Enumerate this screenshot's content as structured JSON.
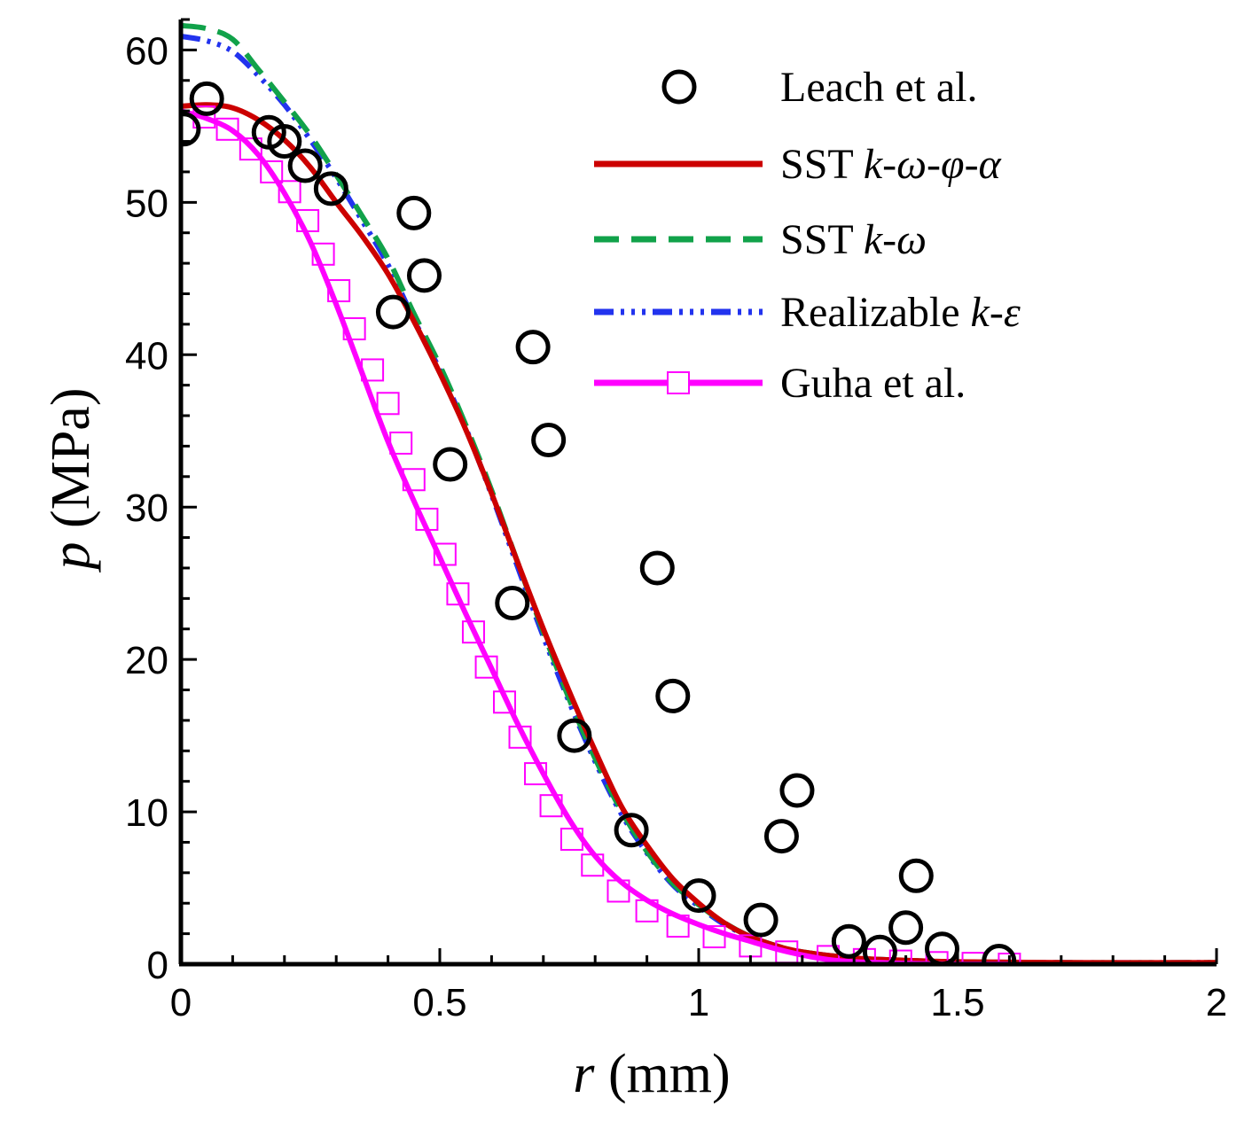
{
  "chart_data": {
    "type": "line",
    "title": "",
    "xlabel": {
      "symbol": "r",
      "unit": "(mm)"
    },
    "ylabel": {
      "symbol": "p",
      "unit": "(MPa)"
    },
    "xlim": [
      0,
      2
    ],
    "ylim": [
      0,
      62
    ],
    "x_ticks": [
      0,
      0.5,
      1,
      1.5,
      2
    ],
    "x_tick_labels": [
      "0",
      "0.5",
      "1",
      "1.5",
      "2"
    ],
    "y_ticks": [
      0,
      10,
      20,
      30,
      40,
      50,
      60
    ],
    "y_tick_labels": [
      "0",
      "10",
      "20",
      "30",
      "40",
      "50",
      "60"
    ],
    "legend_position": "top-right",
    "series": [
      {
        "name": "Leach et al.",
        "legend_parts": [
          {
            "t": "Leach et al.",
            "i": false
          }
        ],
        "kind": "markers",
        "marker": "circle",
        "color": "#000000",
        "points": [
          [
            0.005,
            54.8
          ],
          [
            0.05,
            56.8
          ],
          [
            0.17,
            54.6
          ],
          [
            0.2,
            54.0
          ],
          [
            0.24,
            52.4
          ],
          [
            0.29,
            50.9
          ],
          [
            0.41,
            42.8
          ],
          [
            0.45,
            49.3
          ],
          [
            0.47,
            45.2
          ],
          [
            0.52,
            32.8
          ],
          [
            0.64,
            23.7
          ],
          [
            0.68,
            40.5
          ],
          [
            0.71,
            34.4
          ],
          [
            0.76,
            15.0
          ],
          [
            0.87,
            8.8
          ],
          [
            0.92,
            26.0
          ],
          [
            0.95,
            17.6
          ],
          [
            1.0,
            4.5
          ],
          [
            1.12,
            2.9
          ],
          [
            1.16,
            8.4
          ],
          [
            1.19,
            11.4
          ],
          [
            1.29,
            1.5
          ],
          [
            1.35,
            0.8
          ],
          [
            1.4,
            2.4
          ],
          [
            1.42,
            5.8
          ],
          [
            1.47,
            1.0
          ],
          [
            1.58,
            0.2
          ]
        ]
      },
      {
        "name": "SST k-ω-φ-α",
        "legend_parts": [
          {
            "t": "SST ",
            "i": false
          },
          {
            "t": "k-ω-φ-α",
            "i": true
          }
        ],
        "kind": "line",
        "color": "#cc0000",
        "dash": "none",
        "points": [
          [
            0,
            56.3
          ],
          [
            0.05,
            56.4
          ],
          [
            0.1,
            56.2
          ],
          [
            0.15,
            55.4
          ],
          [
            0.2,
            54.1
          ],
          [
            0.25,
            52.3
          ],
          [
            0.3,
            50.0
          ],
          [
            0.35,
            47.8
          ],
          [
            0.4,
            45.3
          ],
          [
            0.45,
            42.2
          ],
          [
            0.5,
            38.8
          ],
          [
            0.55,
            35.1
          ],
          [
            0.6,
            30.9
          ],
          [
            0.65,
            26.4
          ],
          [
            0.7,
            22.0
          ],
          [
            0.75,
            17.9
          ],
          [
            0.8,
            14.0
          ],
          [
            0.85,
            10.4
          ],
          [
            0.9,
            7.8
          ],
          [
            0.95,
            5.6
          ],
          [
            1.0,
            4.0
          ],
          [
            1.05,
            2.7
          ],
          [
            1.1,
            1.8
          ],
          [
            1.15,
            1.2
          ],
          [
            1.2,
            0.8
          ],
          [
            1.3,
            0.4
          ],
          [
            1.4,
            0.25
          ],
          [
            1.5,
            0.15
          ],
          [
            1.7,
            0.1
          ],
          [
            2.0,
            0.1
          ]
        ]
      },
      {
        "name": "SST k-ω",
        "legend_parts": [
          {
            "t": "SST ",
            "i": false
          },
          {
            "t": "k-ω",
            "i": true
          }
        ],
        "kind": "line",
        "color": "#11a24a",
        "dash": "28 14",
        "points": [
          [
            0,
            61.6
          ],
          [
            0.05,
            61.4
          ],
          [
            0.1,
            60.7
          ],
          [
            0.15,
            58.7
          ],
          [
            0.2,
            56.6
          ],
          [
            0.25,
            54.4
          ],
          [
            0.3,
            51.8
          ],
          [
            0.35,
            49.1
          ],
          [
            0.4,
            46.3
          ],
          [
            0.45,
            42.7
          ],
          [
            0.5,
            39.3
          ],
          [
            0.55,
            35.4
          ],
          [
            0.6,
            31.1
          ],
          [
            0.65,
            26.4
          ],
          [
            0.7,
            21.8
          ],
          [
            0.75,
            17.4
          ],
          [
            0.8,
            13.5
          ],
          [
            0.85,
            10.1
          ],
          [
            0.9,
            7.4
          ],
          [
            0.95,
            5.3
          ],
          [
            1.0,
            3.9
          ],
          [
            1.05,
            2.7
          ],
          [
            1.1,
            1.8
          ],
          [
            1.15,
            1.2
          ],
          [
            1.2,
            0.8
          ],
          [
            1.3,
            0.4
          ],
          [
            1.4,
            0.25
          ],
          [
            1.5,
            0.15
          ],
          [
            1.7,
            0.1
          ],
          [
            2.0,
            0.1
          ]
        ]
      },
      {
        "name": "Realizable k-ε",
        "legend_parts": [
          {
            "t": "Realizable  ",
            "i": false
          },
          {
            "t": "k-ε",
            "i": true
          }
        ],
        "kind": "line",
        "color": "#2233ee",
        "dash": "22 8 4 8 4 8 4 8",
        "points": [
          [
            0,
            60.9
          ],
          [
            0.05,
            60.6
          ],
          [
            0.1,
            59.9
          ],
          [
            0.15,
            58.3
          ],
          [
            0.2,
            56.4
          ],
          [
            0.25,
            54.1
          ],
          [
            0.3,
            51.6
          ],
          [
            0.35,
            48.8
          ],
          [
            0.4,
            45.9
          ],
          [
            0.45,
            42.3
          ],
          [
            0.5,
            39.0
          ],
          [
            0.55,
            35.2
          ],
          [
            0.6,
            30.8
          ],
          [
            0.65,
            26.1
          ],
          [
            0.7,
            21.5
          ],
          [
            0.75,
            17.2
          ],
          [
            0.8,
            13.3
          ],
          [
            0.85,
            9.9
          ],
          [
            0.9,
            7.3
          ],
          [
            0.95,
            5.2
          ],
          [
            1.0,
            3.8
          ],
          [
            1.05,
            2.6
          ],
          [
            1.1,
            1.8
          ],
          [
            1.15,
            1.2
          ],
          [
            1.2,
            0.8
          ],
          [
            1.3,
            0.4
          ],
          [
            1.4,
            0.25
          ],
          [
            1.5,
            0.15
          ],
          [
            1.7,
            0.1
          ],
          [
            2.0,
            0.1
          ]
        ]
      },
      {
        "name": "Guha et al.",
        "legend_parts": [
          {
            "t": "Guha et al.",
            "i": false
          }
        ],
        "kind": "line+markers",
        "marker": "square",
        "color": "#ff00ff",
        "dash": "none",
        "points": [
          [
            0,
            56.0
          ],
          [
            0.05,
            55.5
          ],
          [
            0.1,
            54.7
          ],
          [
            0.15,
            53.1
          ],
          [
            0.2,
            50.6
          ],
          [
            0.25,
            47.4
          ],
          [
            0.3,
            43.3
          ],
          [
            0.35,
            38.8
          ],
          [
            0.4,
            34.3
          ],
          [
            0.45,
            30.4
          ],
          [
            0.5,
            26.7
          ],
          [
            0.55,
            23.0
          ],
          [
            0.6,
            19.4
          ],
          [
            0.65,
            15.8
          ],
          [
            0.7,
            12.5
          ],
          [
            0.75,
            9.5
          ],
          [
            0.8,
            7.1
          ],
          [
            0.85,
            5.4
          ],
          [
            0.9,
            4.2
          ],
          [
            0.95,
            3.3
          ],
          [
            1.0,
            2.6
          ],
          [
            1.05,
            2.0
          ],
          [
            1.1,
            1.5
          ],
          [
            1.15,
            1.0
          ],
          [
            1.2,
            0.6
          ],
          [
            1.25,
            0.3
          ],
          [
            1.3,
            0.15
          ],
          [
            1.35,
            0.1
          ],
          [
            1.4,
            0.05
          ],
          [
            1.5,
            0.0
          ],
          [
            1.6,
            0.0
          ]
        ],
        "marker_points": [
          [
            0.045,
            55.6
          ],
          [
            0.09,
            54.8
          ],
          [
            0.135,
            53.5
          ],
          [
            0.175,
            52.0
          ],
          [
            0.21,
            50.7
          ],
          [
            0.245,
            48.8
          ],
          [
            0.275,
            46.6
          ],
          [
            0.305,
            44.2
          ],
          [
            0.335,
            41.7
          ],
          [
            0.37,
            39.0
          ],
          [
            0.4,
            36.8
          ],
          [
            0.425,
            34.2
          ],
          [
            0.45,
            31.8
          ],
          [
            0.475,
            29.2
          ],
          [
            0.51,
            26.9
          ],
          [
            0.535,
            24.3
          ],
          [
            0.565,
            21.8
          ],
          [
            0.59,
            19.5
          ],
          [
            0.625,
            17.2
          ],
          [
            0.655,
            14.9
          ],
          [
            0.685,
            12.5
          ],
          [
            0.715,
            10.4
          ],
          [
            0.755,
            8.2
          ],
          [
            0.795,
            6.5
          ],
          [
            0.845,
            4.8
          ],
          [
            0.9,
            3.5
          ],
          [
            0.96,
            2.5
          ],
          [
            1.03,
            1.8
          ],
          [
            1.1,
            1.2
          ],
          [
            1.17,
            0.8
          ],
          [
            1.25,
            0.5
          ],
          [
            1.32,
            0.3
          ],
          [
            1.39,
            0.2
          ],
          [
            1.46,
            0.1
          ],
          [
            1.53,
            0.05
          ],
          [
            1.6,
            0.0
          ]
        ]
      }
    ]
  }
}
